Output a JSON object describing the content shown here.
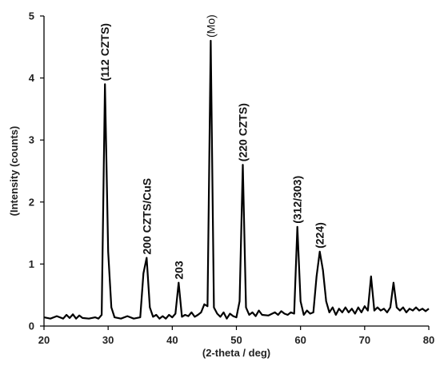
{
  "chart_data": {
    "type": "line",
    "title": "",
    "xlabel": "(2-theta / deg)",
    "ylabel": "(Intensity (counts)",
    "xlim": [
      20,
      80
    ],
    "ylim": [
      0,
      5
    ],
    "x_ticks": [
      20,
      30,
      40,
      50,
      60,
      70,
      80
    ],
    "y_ticks": [
      0,
      1,
      2,
      3,
      4,
      5
    ],
    "grid": false,
    "line_color": "#000000",
    "series": [
      {
        "x": [
          20,
          21,
          22,
          23,
          23.5,
          24,
          24.5,
          25,
          25.5,
          26,
          27,
          28,
          28.5,
          29,
          29.5,
          30,
          30.5,
          31,
          32,
          33,
          34,
          35,
          35.5,
          36,
          36.5,
          37,
          37.5,
          38,
          38.5,
          39,
          39.5,
          40,
          40.5,
          41,
          41.5,
          42,
          42.5,
          43,
          43.5,
          44,
          44.5,
          45,
          45.5,
          46,
          46.5,
          47,
          47.5,
          48,
          48.5,
          49,
          49.5,
          50,
          50.5,
          51,
          51.5,
          52,
          52.5,
          53,
          53.5,
          54,
          55,
          56,
          56.5,
          57,
          57.5,
          58,
          58.5,
          59,
          59.5,
          60,
          60.5,
          61,
          61.5,
          62,
          62.5,
          63,
          63.5,
          64,
          64.5,
          65,
          65.5,
          66,
          66.5,
          67,
          67.5,
          68,
          68.5,
          69,
          69.5,
          70,
          70.5,
          71,
          71.5,
          72,
          72.5,
          73,
          73.5,
          74,
          74.5,
          75,
          75.5,
          76,
          76.5,
          77,
          77.5,
          78,
          78.5,
          79,
          79.5,
          80
        ],
        "y": [
          0.14,
          0.12,
          0.16,
          0.12,
          0.18,
          0.13,
          0.19,
          0.12,
          0.17,
          0.13,
          0.12,
          0.14,
          0.12,
          0.18,
          3.9,
          1.2,
          0.3,
          0.14,
          0.12,
          0.16,
          0.12,
          0.14,
          0.85,
          1.1,
          0.3,
          0.15,
          0.18,
          0.12,
          0.16,
          0.12,
          0.18,
          0.14,
          0.2,
          0.7,
          0.15,
          0.18,
          0.16,
          0.22,
          0.15,
          0.18,
          0.22,
          0.35,
          0.32,
          4.6,
          0.3,
          0.2,
          0.15,
          0.22,
          0.12,
          0.2,
          0.16,
          0.14,
          0.4,
          2.6,
          0.3,
          0.18,
          0.22,
          0.16,
          0.25,
          0.18,
          0.17,
          0.22,
          0.18,
          0.24,
          0.2,
          0.18,
          0.22,
          0.2,
          1.6,
          0.4,
          0.18,
          0.25,
          0.2,
          0.22,
          0.8,
          1.2,
          0.9,
          0.4,
          0.22,
          0.3,
          0.18,
          0.28,
          0.22,
          0.3,
          0.22,
          0.28,
          0.2,
          0.3,
          0.22,
          0.32,
          0.25,
          0.8,
          0.25,
          0.3,
          0.25,
          0.28,
          0.22,
          0.3,
          0.7,
          0.3,
          0.25,
          0.3,
          0.22,
          0.28,
          0.25,
          0.3,
          0.25,
          0.28,
          0.24,
          0.28
        ]
      }
    ],
    "annotations": [
      {
        "text": "(112 CZTS)",
        "x": 29.5,
        "y": 3.9
      },
      {
        "text": "200 CZTS/CuS",
        "x": 36,
        "y": 1.1
      },
      {
        "text": "203",
        "x": 41,
        "y": 0.7
      },
      {
        "text": "(Mo)",
        "x": 46,
        "y": 4.6
      },
      {
        "text": "(220 CZTS)",
        "x": 51,
        "y": 2.6
      },
      {
        "text": "(312/303)",
        "x": 59.5,
        "y": 1.6
      },
      {
        "text": "(224)",
        "x": 63,
        "y": 1.2
      }
    ]
  }
}
